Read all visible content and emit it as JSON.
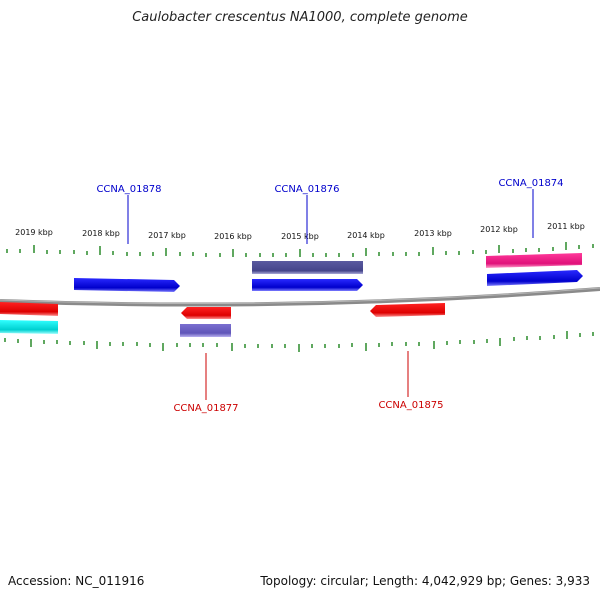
{
  "title": "Caulobacter crescentus NA1000, complete genome",
  "accession": "Accession: NC_011916",
  "info": "Topology: circular; Length: 4,042,929 bp; Genes: 3,933",
  "scale_labels": [
    "2019 kbp",
    "2018 kbp",
    "2017 kbp",
    "2016 kbp",
    "2015 kbp",
    "2014 kbp",
    "2013 kbp",
    "2012 kbp",
    "2011 kbp"
  ],
  "genes": [
    {
      "name": "CCNA_01878",
      "strand": "plus",
      "color": "#0000cc"
    },
    {
      "name": "CCNA_01876",
      "strand": "plus",
      "color": "#0000cc"
    },
    {
      "name": "CCNA_01874",
      "strand": "plus",
      "color": "#0000cc"
    },
    {
      "name": "CCNA_01877",
      "strand": "minus",
      "color": "#cc0000"
    },
    {
      "name": "CCNA_01875",
      "strand": "minus",
      "color": "#cc0000"
    }
  ],
  "colors": {
    "forward_gene": "#0000dd",
    "reverse_gene": "#ee0000",
    "feature_purple": "#4b4a8f",
    "feature_pink": "#e0147a",
    "feature_cyan": "#00d8d8",
    "feature_lavender": "#6b5fc4",
    "backbone": "#7a7a7a",
    "tick": "#2b8a2b"
  }
}
